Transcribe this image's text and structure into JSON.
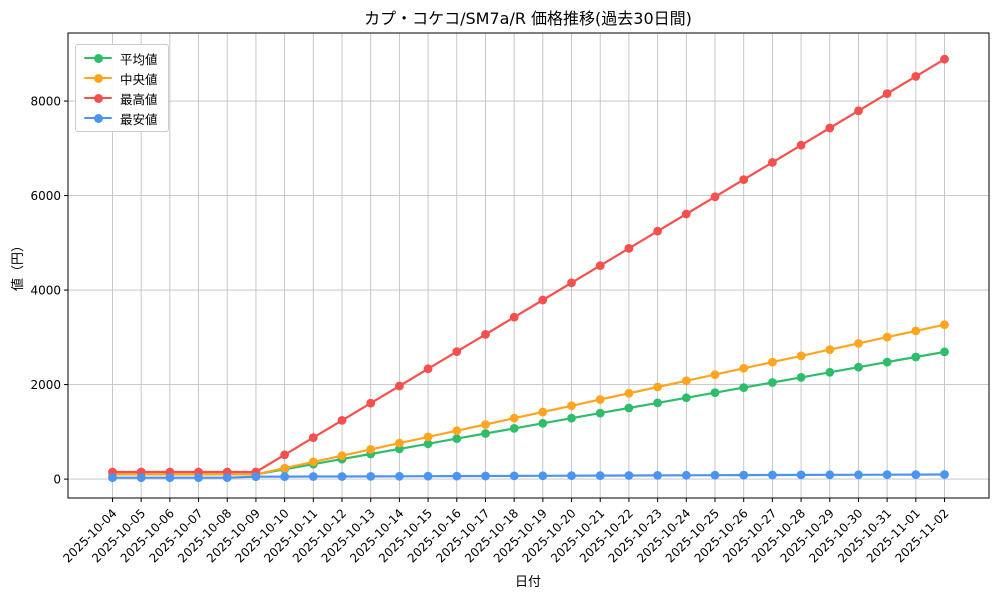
{
  "chart_data": {
    "type": "line",
    "title": "カプ・コケコ/SM7a/R 価格推移(過去30日間)",
    "xlabel": "日付",
    "ylabel": "値（円）",
    "x": [
      "2025-10-04",
      "2025-10-05",
      "2025-10-06",
      "2025-10-07",
      "2025-10-08",
      "2025-10-09",
      "2025-10-10",
      "2025-10-11",
      "2025-10-12",
      "2025-10-13",
      "2025-10-14",
      "2025-10-15",
      "2025-10-16",
      "2025-10-17",
      "2025-10-18",
      "2025-10-19",
      "2025-10-20",
      "2025-10-21",
      "2025-10-22",
      "2025-10-23",
      "2025-10-24",
      "2025-10-25",
      "2025-10-26",
      "2025-10-27",
      "2025-10-28",
      "2025-10-29",
      "2025-10-30",
      "2025-10-31",
      "2025-11-01",
      "2025-11-02"
    ],
    "yticks": [
      0,
      2000,
      4000,
      6000,
      8000
    ],
    "ylim": [
      -400,
      9440
    ],
    "grid": true,
    "legend_position": "upper left",
    "colors": {
      "grid": "#c2c2c2",
      "spine": "#000000",
      "average": "#2ebd6b",
      "median": "#ffa51f",
      "max": "#f5504e",
      "min": "#4b94f2"
    },
    "series": [
      {
        "name": "平均値",
        "color": "#2ebd6b",
        "values": [
          100,
          100,
          100,
          100,
          100,
          100,
          208,
          316,
          424,
          532,
          640,
          748,
          856,
          964,
          1072,
          1180,
          1288,
          1396,
          1504,
          1612,
          1720,
          1828,
          1936,
          2044,
          2152,
          2260,
          2368,
          2476,
          2584,
          2692
        ]
      },
      {
        "name": "中央値",
        "color": "#ffa51f",
        "values": [
          100,
          100,
          100,
          100,
          100,
          100,
          232,
          364,
          496,
          628,
          760,
          892,
          1024,
          1156,
          1288,
          1420,
          1552,
          1684,
          1816,
          1948,
          2080,
          2212,
          2344,
          2476,
          2608,
          2740,
          2872,
          3004,
          3136,
          3268
        ]
      },
      {
        "name": "最高値",
        "color": "#f5504e",
        "values": [
          150,
          150,
          150,
          150,
          150,
          150,
          514,
          878,
          1242,
          1606,
          1970,
          2334,
          2698,
          3062,
          3426,
          3790,
          4154,
          4518,
          4882,
          5246,
          5610,
          5974,
          6338,
          6702,
          7066,
          7430,
          7794,
          8158,
          8522,
          8886
        ]
      },
      {
        "name": "最安値",
        "color": "#4b94f2",
        "values": [
          30,
          30,
          30,
          30,
          30,
          50,
          52,
          54,
          56,
          58,
          60,
          62,
          64,
          66,
          68,
          70,
          72,
          74,
          76,
          78,
          80,
          82,
          84,
          86,
          88,
          90,
          92,
          94,
          96,
          98
        ]
      }
    ]
  }
}
